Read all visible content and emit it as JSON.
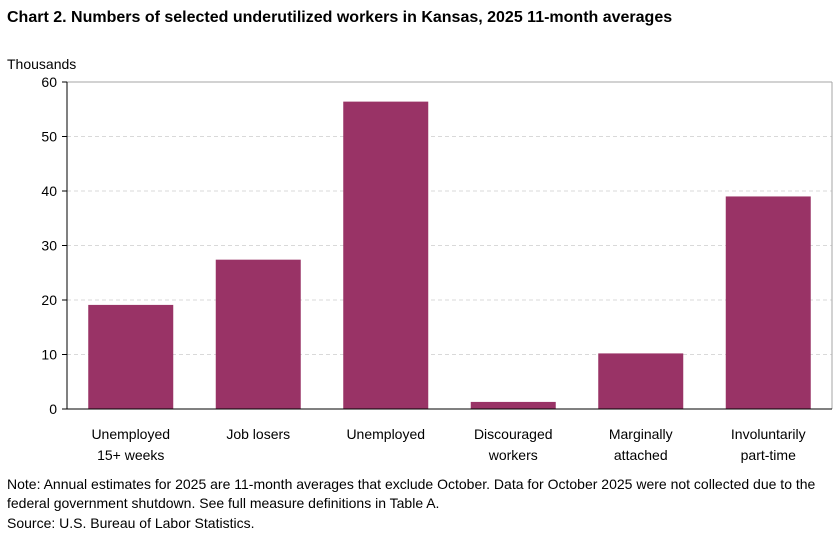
{
  "chart_data": {
    "type": "bar",
    "title": "Chart 2. Numbers of selected underutilized workers in Kansas, 2025 11-month averages",
    "ylabel": "Thousands",
    "xlabel": "",
    "categories": [
      [
        "Unemployed",
        "15+ weeks"
      ],
      [
        "Job losers"
      ],
      [
        "Unemployed"
      ],
      [
        "Discouraged",
        "workers"
      ],
      [
        "Marginally",
        "attached"
      ],
      [
        "Involuntarily",
        "part-time"
      ]
    ],
    "values": [
      19.1,
      27.4,
      56.4,
      1.3,
      10.2,
      39.0
    ],
    "ylim": [
      0,
      60
    ],
    "yticks": [
      0,
      10,
      20,
      30,
      40,
      50,
      60
    ],
    "grid": true,
    "legend": "none",
    "bar_color": "#993366"
  },
  "notes": {
    "note": "Note: Annual estimates for 2025 are 11-month averages that exclude October. Data for October 2025 were not collected due to the federal government shutdown. See full measure definitions in Table A.",
    "source": "Source: U.S. Bureau of Labor Statistics."
  }
}
